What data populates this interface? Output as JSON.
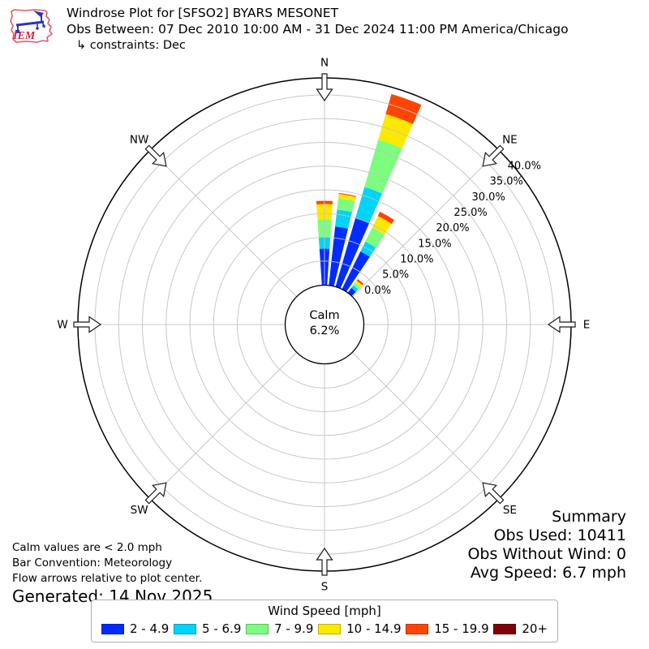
{
  "header": {
    "logo_text": "IEM",
    "title": "Windrose Plot for [SFSO2] BYARS MESONET",
    "subtitle": "Obs Between: 07 Dec 2010 10:00 AM - 31 Dec 2024 11:00 PM America/Chicago",
    "constraints": "↳ constraints: Dec"
  },
  "summary": {
    "title": "Summary",
    "obs_used": "Obs Used: 10411",
    "obs_without_wind": "Obs Without Wind: 0",
    "avg_speed": "Avg Speed: 6.7 mph"
  },
  "notes": {
    "calm_note": "Calm values are < 2.0 mph",
    "convention_note": "Bar Convention: Meteorology",
    "arrows_note": "Flow arrows relative to plot center.",
    "generated": "Generated: 14 Nov 2025"
  },
  "legend": {
    "title": "Wind Speed [mph]"
  },
  "chart_data": {
    "type": "bar",
    "subtype": "windrose-polar-stacked",
    "units": "%",
    "calm": {
      "label": "Calm",
      "value": "6.2%"
    },
    "compass_labels": [
      {
        "label": "N",
        "angle": 0
      },
      {
        "label": "NE",
        "angle": 45
      },
      {
        "label": "E",
        "angle": 90
      },
      {
        "label": "SE",
        "angle": 135
      },
      {
        "label": "S",
        "angle": 180
      },
      {
        "label": "SW",
        "angle": 225
      },
      {
        "label": "W",
        "angle": 270
      },
      {
        "label": "NW",
        "angle": 315
      }
    ],
    "flow_arrow_angles": [
      0,
      45,
      90,
      135,
      180,
      225,
      270,
      315
    ],
    "radial_ticks": [
      {
        "label": "0.0%",
        "pct": 0
      },
      {
        "label": "5.0%",
        "pct": 5
      },
      {
        "label": "10.0%",
        "pct": 10
      },
      {
        "label": "15.0%",
        "pct": 15
      },
      {
        "label": "20.0%",
        "pct": 20
      },
      {
        "label": "25.0%",
        "pct": 25
      },
      {
        "label": "30.0%",
        "pct": 30
      },
      {
        "label": "35.0%",
        "pct": 35
      },
      {
        "label": "40.0%",
        "pct": 40
      }
    ],
    "rmax_pct": 43.6,
    "sector_width_deg": 7.6,
    "directions_deg": [
      0,
      10,
      20,
      30,
      40
    ],
    "bins": [
      {
        "label": "2 - 4.9",
        "color": "#012cff",
        "values": [
          7.6,
          12.4,
          15.1,
          8.8,
          1.2
        ]
      },
      {
        "label": "5 - 6.9",
        "color": "#00d5f7",
        "values": [
          2.5,
          3.6,
          6.7,
          2.3,
          0.7
        ]
      },
      {
        "label": "7 - 9.9",
        "color": "#7cfd7f",
        "values": [
          3.7,
          2.4,
          10.4,
          3.3,
          0.6
        ]
      },
      {
        "label": "10 - 14.9",
        "color": "#fde801",
        "values": [
          3.2,
          0.9,
          5.6,
          2.7,
          0.6
        ]
      },
      {
        "label": "15 - 19.9",
        "color": "#ff4503",
        "values": [
          0.7,
          0.2,
          4.4,
          1.0,
          0.4
        ]
      },
      {
        "label": "20+",
        "color": "#7e0308",
        "values": [
          0,
          0,
          0,
          0,
          0
        ]
      }
    ],
    "bar_totals_pct": [
      17.7,
      19.5,
      42.2,
      18.1,
      3.5
    ]
  }
}
